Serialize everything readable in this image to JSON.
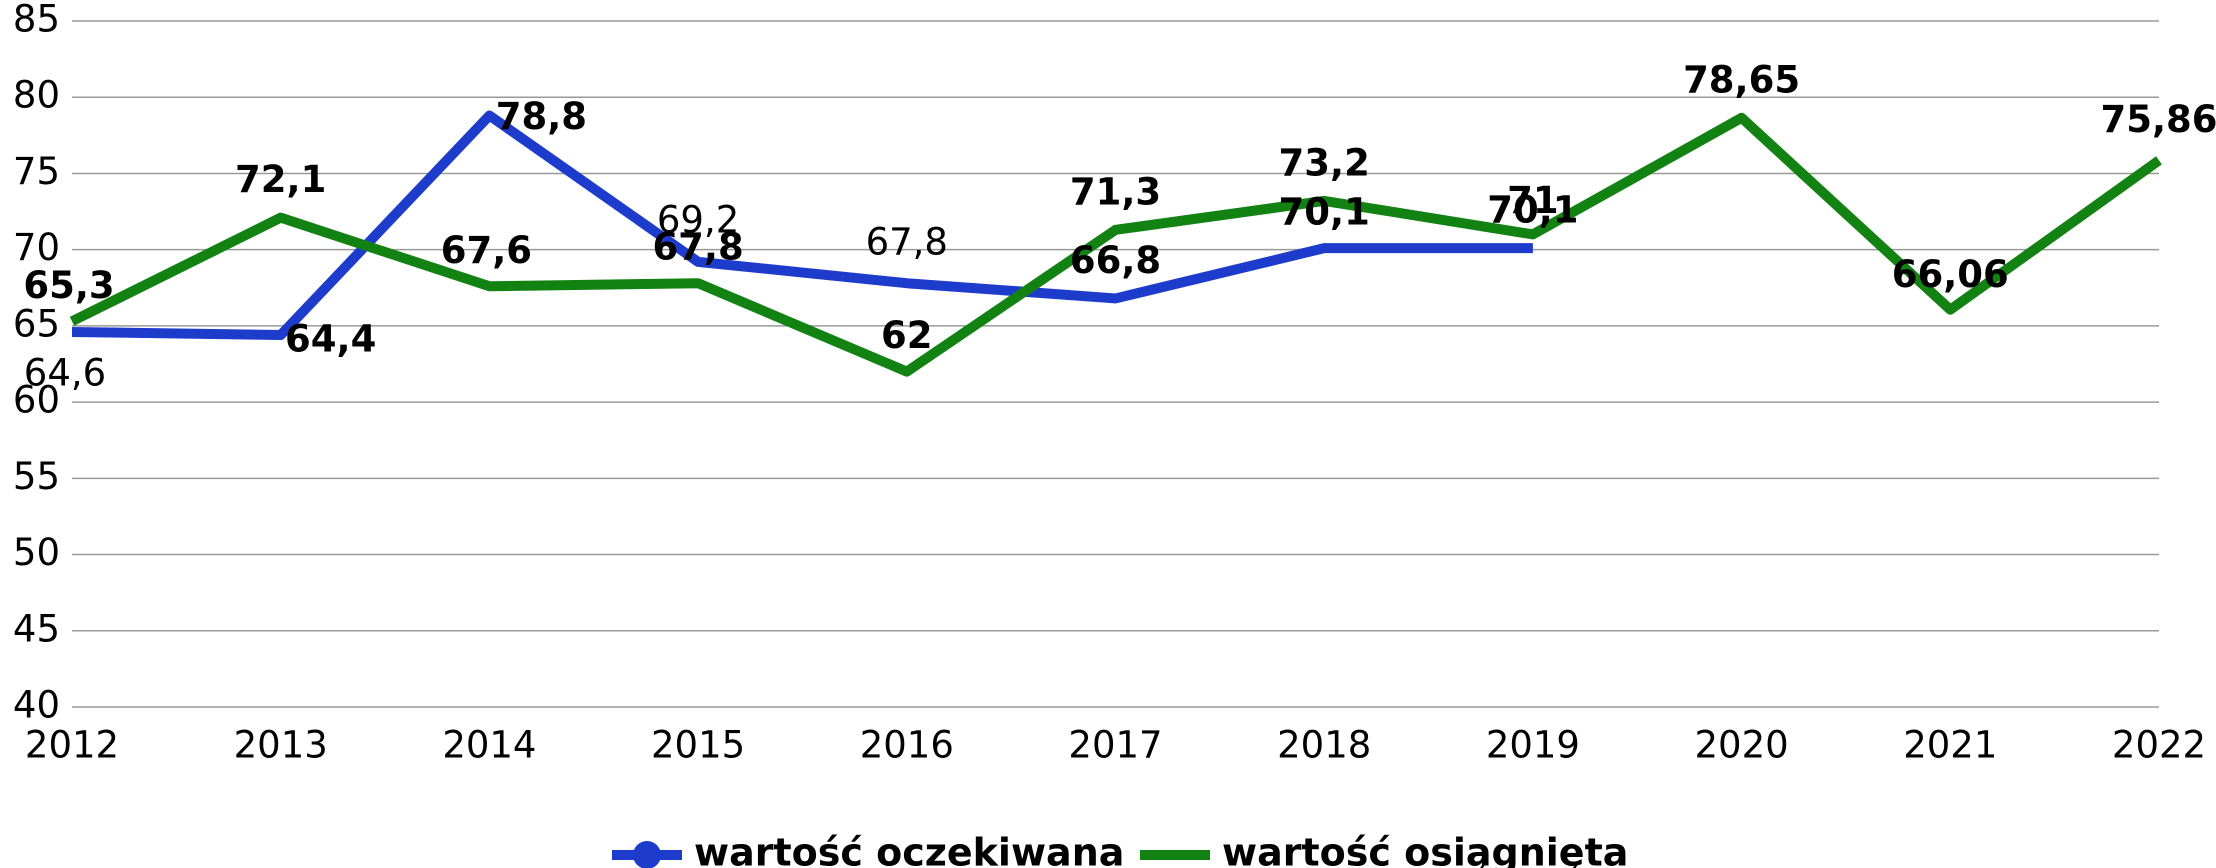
{
  "chart_data": {
    "type": "line",
    "categories": [
      "2012",
      "2013",
      "2014",
      "2015",
      "2016",
      "2017",
      "2018",
      "2019",
      "2020",
      "2021",
      "2022"
    ],
    "series": [
      {
        "name": "wartość oczekiwana",
        "color": "#1e3ccc",
        "values": [
          64.6,
          64.4,
          78.8,
          69.2,
          67.8,
          66.8,
          70.1,
          70.1,
          null,
          null,
          null
        ],
        "value_labels": [
          "64,6",
          "64,4",
          "78,8",
          "69,2",
          "67,8",
          "66,8",
          "70,1",
          "70,1",
          null,
          null,
          null
        ]
      },
      {
        "name": "wartość osiągnięta",
        "color": "#128212",
        "values": [
          65.3,
          72.1,
          67.6,
          67.8,
          62,
          71.3,
          73.2,
          71,
          78.65,
          66.06,
          75.86
        ],
        "value_labels": [
          "65,3",
          "72,1",
          "67,6",
          "67,8",
          "62",
          "71,3",
          "73,2",
          "71",
          "78,65",
          "66,06",
          "75,86"
        ]
      }
    ],
    "ylim": [
      40,
      85
    ],
    "yticks": [
      40,
      45,
      50,
      55,
      60,
      65,
      70,
      75,
      80,
      85
    ],
    "grid": true,
    "legend": "bottom"
  }
}
